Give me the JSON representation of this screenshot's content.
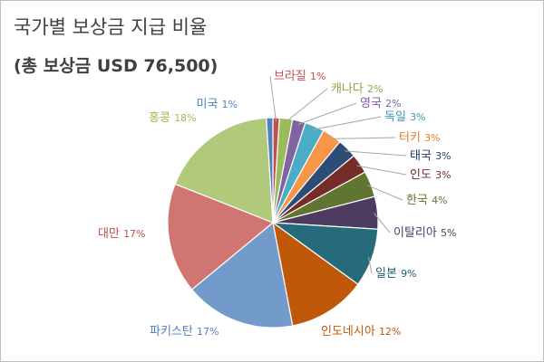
{
  "chart_data": {
    "type": "pie",
    "title": "국가별 보상금 지급 비율",
    "subtitle": "(총 보상금 USD 76,500)",
    "slices": [
      {
        "label": "브라질",
        "pct_label": "1%",
        "value": 1,
        "color": "#c0504d",
        "label_color": "#c0504d"
      },
      {
        "label": "캐나다",
        "pct_label": "2%",
        "value": 2,
        "color": "#9bbb59",
        "label_color": "#8aa84a"
      },
      {
        "label": "영국",
        "pct_label": "2%",
        "value": 2,
        "color": "#8064a2",
        "label_color": "#7c5ca6"
      },
      {
        "label": "독일",
        "pct_label": "3%",
        "value": 3,
        "color": "#4bacc6",
        "label_color": "#3c9ab8"
      },
      {
        "label": "터키",
        "pct_label": "3%",
        "value": 3,
        "color": "#f79646",
        "label_color": "#e87d2a"
      },
      {
        "label": "태국",
        "pct_label": "3%",
        "value": 3,
        "color": "#2c4d75",
        "label_color": "#1f3c64"
      },
      {
        "label": "인도",
        "pct_label": "3%",
        "value": 3,
        "color": "#772c2a",
        "label_color": "#772c2a"
      },
      {
        "label": "한국",
        "pct_label": "4%",
        "value": 4,
        "color": "#5f7530",
        "label_color": "#5f7530"
      },
      {
        "label": "이탈리아",
        "pct_label": "5%",
        "value": 5,
        "color": "#4d3b62",
        "label_color": "#4d3b62"
      },
      {
        "label": "일본",
        "pct_label": "9%",
        "value": 9,
        "color": "#276a7c",
        "label_color": "#1f5f70"
      },
      {
        "label": "인도네시아",
        "pct_label": "12%",
        "value": 12,
        "color": "#c0580a",
        "label_color": "#c0580a"
      },
      {
        "label": "파키스탄",
        "pct_label": "17%",
        "value": 17,
        "color": "#729aca",
        "label_color": "#4f81bd"
      },
      {
        "label": "대만",
        "pct_label": "17%",
        "value": 17,
        "color": "#d07572",
        "label_color": "#c0504d"
      },
      {
        "label": "홍콩",
        "pct_label": "18%",
        "value": 18,
        "color": "#b0c97b",
        "label_color": "#9bbb59"
      },
      {
        "label": "미국",
        "pct_label": "1%",
        "value": 1,
        "color": "#4f81bd",
        "label_color": "#4f81bd"
      }
    ]
  }
}
